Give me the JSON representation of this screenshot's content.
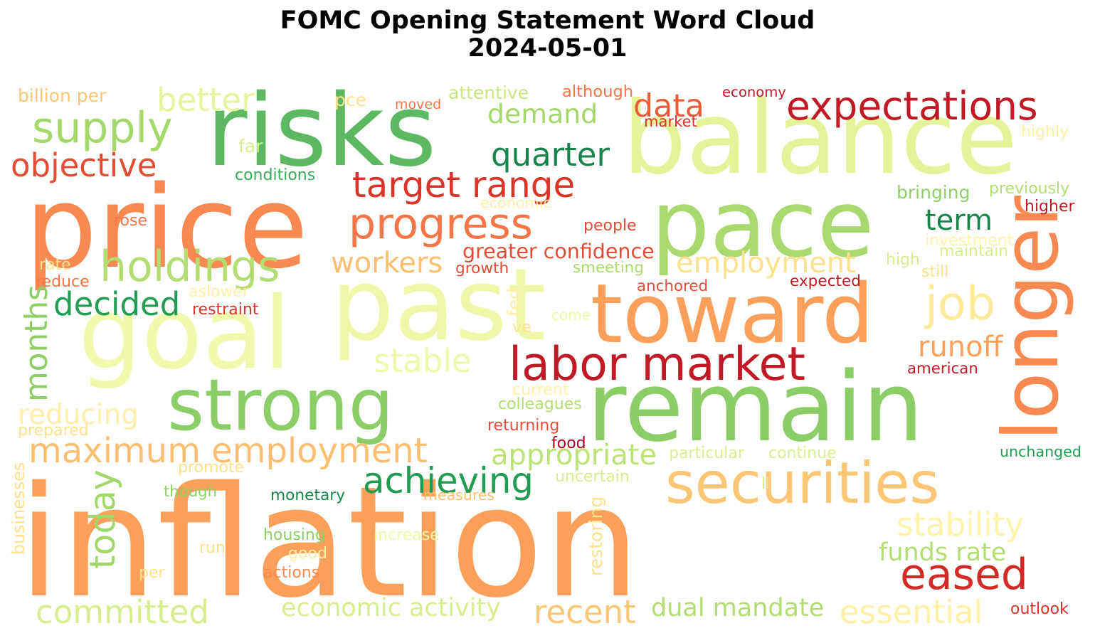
{
  "title": {
    "line1": "FOMC Opening Statement Word Cloud",
    "line2": "2024-05-01"
  },
  "colormap": "RdYlGn",
  "words": [
    {
      "text": "inflation",
      "color": "#fba05b"
    },
    {
      "text": "price",
      "color": "#f88950"
    },
    {
      "text": "balance",
      "color": "#e3f399"
    },
    {
      "text": "past",
      "color": "#eef8a8"
    },
    {
      "text": "goal",
      "color": "#f1f9ac"
    },
    {
      "text": "risks",
      "color": "#5db961"
    },
    {
      "text": "pace",
      "color": "#a9d86e"
    },
    {
      "text": "remain",
      "color": "#8ccd67"
    },
    {
      "text": "toward",
      "color": "#fba05b"
    },
    {
      "text": "strong",
      "color": "#8ccd67"
    },
    {
      "text": "securities",
      "color": "#fdc675"
    },
    {
      "text": "longer",
      "color": "#f88950"
    },
    {
      "text": "labor market",
      "color": "#c01a27"
    },
    {
      "text": "expectations",
      "color": "#c01a27"
    },
    {
      "text": "progress",
      "color": "#f57547"
    },
    {
      "text": "holdings",
      "color": "#b3dd72"
    },
    {
      "text": "supply",
      "color": "#a5d86a"
    },
    {
      "text": "target range",
      "color": "#d93429"
    },
    {
      "text": "maximum employment",
      "color": "#fdbf6f"
    },
    {
      "text": "employment",
      "color": "#fee18d"
    },
    {
      "text": "eased",
      "color": "#d22b27"
    },
    {
      "text": "essential",
      "color": "#fff0a6"
    },
    {
      "text": "committed",
      "color": "#d7ee8e"
    },
    {
      "text": "economic activity",
      "color": "#d7ee8e"
    },
    {
      "text": "recent",
      "color": "#fdc675"
    },
    {
      "text": "dual mandate",
      "color": "#b3dd72"
    },
    {
      "text": "stability",
      "color": "#fff3ac"
    },
    {
      "text": "job",
      "color": "#feea9b"
    },
    {
      "text": "achieving",
      "color": "#219c52"
    },
    {
      "text": "appropriate",
      "color": "#bde275"
    },
    {
      "text": "today",
      "color": "#a2d76a"
    },
    {
      "text": "decided",
      "color": "#219c52"
    },
    {
      "text": "demand",
      "color": "#a5d86a"
    },
    {
      "text": "data",
      "color": "#ec5c3b"
    },
    {
      "text": "quarter",
      "color": "#18844c"
    },
    {
      "text": "better",
      "color": "#e6f59d"
    },
    {
      "text": "objective",
      "color": "#e24d35"
    },
    {
      "text": "term",
      "color": "#18844c"
    },
    {
      "text": "workers",
      "color": "#fdbf6f"
    },
    {
      "text": "months",
      "color": "#8ecf67"
    },
    {
      "text": "stable",
      "color": "#eef8a8"
    },
    {
      "text": "reducing",
      "color": "#ffedab"
    },
    {
      "text": "runoff",
      "color": "#fba05b"
    },
    {
      "text": "funds rate",
      "color": "#b3dd72"
    },
    {
      "text": "greater confidence",
      "color": "#e24d35"
    },
    {
      "text": "billion per",
      "color": "#fdc675"
    },
    {
      "text": "pce",
      "color": "#fee18d"
    },
    {
      "text": "attentive",
      "color": "#c8e77f"
    },
    {
      "text": "although",
      "color": "#f57547"
    },
    {
      "text": "economy",
      "color": "#c01a27"
    },
    {
      "text": "moved",
      "color": "#f57547"
    },
    {
      "text": "market",
      "color": "#d93429"
    },
    {
      "text": "highly",
      "color": "#fff0a6"
    },
    {
      "text": "far",
      "color": "#d7ee8e"
    },
    {
      "text": "conditions",
      "color": "#3aab59"
    },
    {
      "text": "economic",
      "color": "#fff0a6"
    },
    {
      "text": "bringing",
      "color": "#8ecf67"
    },
    {
      "text": "previously",
      "color": "#b3dd72"
    },
    {
      "text": "higher",
      "color": "#c01a27"
    },
    {
      "text": "rose",
      "color": "#f57547"
    },
    {
      "text": "people",
      "color": "#e24d35"
    },
    {
      "text": "investment",
      "color": "#fff3ac"
    },
    {
      "text": "maintain",
      "color": "#d7ee8e"
    },
    {
      "text": "rate",
      "color": "#fee18d"
    },
    {
      "text": "growth",
      "color": "#e24d35"
    },
    {
      "text": "smeeting",
      "color": "#a9d86e"
    },
    {
      "text": "high",
      "color": "#d7ee8e"
    },
    {
      "text": "still",
      "color": "#fee18d"
    },
    {
      "text": "reduce",
      "color": "#f57547"
    },
    {
      "text": "aslower",
      "color": "#fff0a6"
    },
    {
      "text": "anchored",
      "color": "#e24d35"
    },
    {
      "text": "expected",
      "color": "#c01a27"
    },
    {
      "text": "restraint",
      "color": "#d93429"
    },
    {
      "text": "fed",
      "color": "#fff0a6"
    },
    {
      "text": "come",
      "color": "#eef8a8"
    },
    {
      "text": "ve",
      "color": "#fee18d"
    },
    {
      "text": "american",
      "color": "#c01a27"
    },
    {
      "text": "current",
      "color": "#fff0a6"
    },
    {
      "text": "colleagues",
      "color": "#b3dd72"
    },
    {
      "text": "prepared",
      "color": "#fee18d"
    },
    {
      "text": "returning",
      "color": "#e24d35"
    },
    {
      "text": "food",
      "color": "#a50026"
    },
    {
      "text": "particular",
      "color": "#d7ee8e"
    },
    {
      "text": "continue",
      "color": "#d7ee8e"
    },
    {
      "text": "unchanged",
      "color": "#219c52"
    },
    {
      "text": "promote",
      "color": "#fee18d"
    },
    {
      "text": "uncertain",
      "color": "#d7ee8e"
    },
    {
      "text": "though",
      "color": "#8ecf67"
    },
    {
      "text": "monetary",
      "color": "#18844c"
    },
    {
      "text": "measures",
      "color": "#fdbf6f"
    },
    {
      "text": "ll",
      "color": "#d7ee8e"
    },
    {
      "text": "businesses",
      "color": "#fee18d"
    },
    {
      "text": "restoring",
      "color": "#fee18d"
    },
    {
      "text": "housing",
      "color": "#8ecf67"
    },
    {
      "text": "increase",
      "color": "#eef8a8"
    },
    {
      "text": "run",
      "color": "#fee18d"
    },
    {
      "text": "good",
      "color": "#fff0a6"
    },
    {
      "text": "per",
      "color": "#fee18d"
    },
    {
      "text": "actions",
      "color": "#f88950"
    },
    {
      "text": "outlook",
      "color": "#d93429"
    }
  ]
}
